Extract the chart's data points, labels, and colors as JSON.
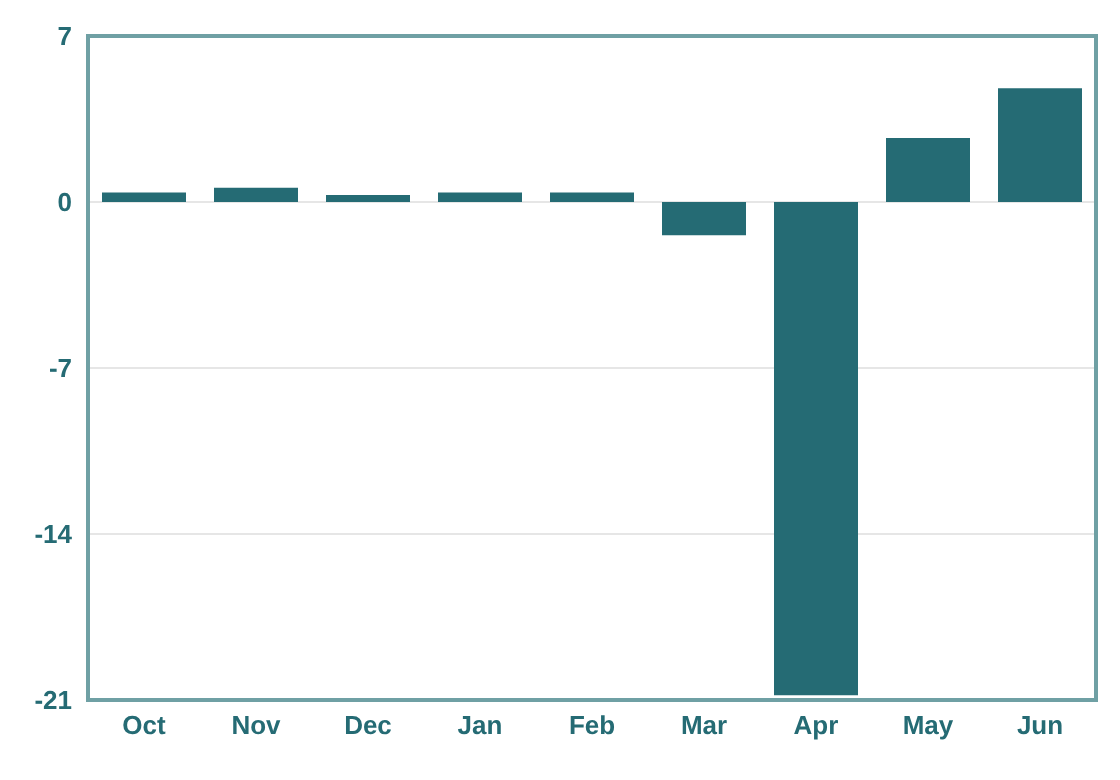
{
  "chart_data": {
    "type": "bar",
    "categories": [
      "Oct",
      "Nov",
      "Dec",
      "Jan",
      "Feb",
      "Mar",
      "Apr",
      "May",
      "Jun"
    ],
    "values": [
      0.4,
      0.6,
      0.3,
      0.4,
      0.4,
      -1.4,
      -20.8,
      2.7,
      4.8
    ],
    "color": "#256b74",
    "ylim": [
      -21,
      7
    ],
    "yticks": [
      -21,
      -14,
      -7,
      0,
      7
    ],
    "grid": "y"
  }
}
